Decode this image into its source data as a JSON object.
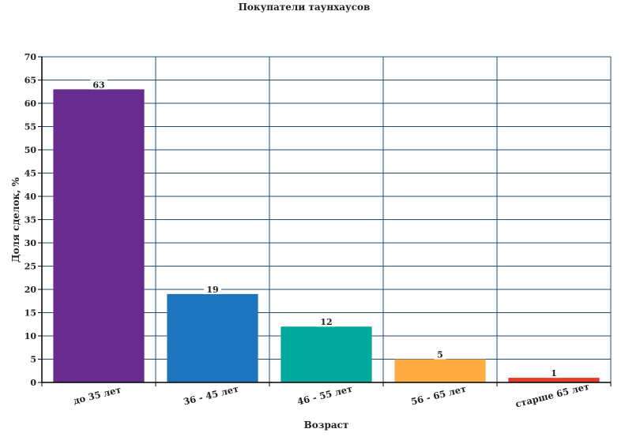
{
  "chart_data": {
    "type": "bar",
    "title": "Покупатели таунхаусов",
    "xlabel": "Возраст",
    "ylabel": "Доля сделок, %",
    "categories": [
      "до 35 лет",
      "36 - 45 лет",
      "46 - 55 лет",
      "56 - 65 лет",
      "старше 65 лет"
    ],
    "values": [
      63,
      19,
      12,
      5,
      1
    ],
    "colors": [
      "#682c8e",
      "#1f74be",
      "#00a99c",
      "#ffad42",
      "#e63a2d"
    ],
    "ylim": [
      0,
      70
    ],
    "yticks": [
      0,
      5,
      10,
      15,
      20,
      25,
      30,
      35,
      40,
      45,
      50,
      55,
      60,
      65,
      70
    ],
    "grid": true,
    "legend": "none",
    "grid_color": "#1f4e79"
  }
}
